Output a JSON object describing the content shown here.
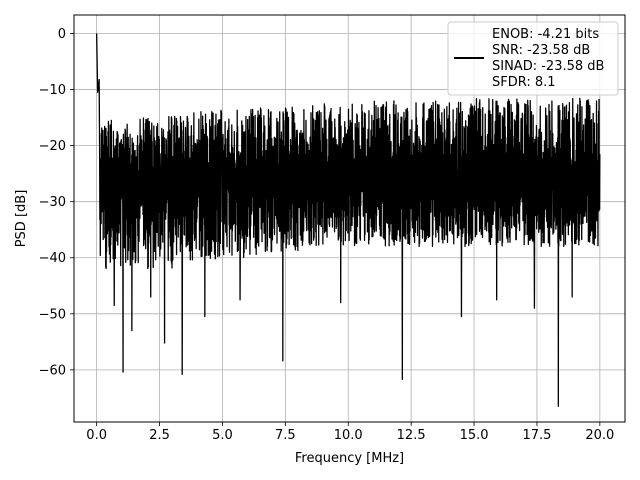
{
  "chart_data": {
    "type": "line",
    "title": "",
    "xlabel": "Frequency [MHz]",
    "ylabel": "PSD [dB]",
    "xlim": [
      -0.9,
      21.0
    ],
    "ylim": [
      -69.3,
      3.3
    ],
    "xticks": [
      0.0,
      2.5,
      5.0,
      7.5,
      10.0,
      12.5,
      15.0,
      17.5,
      20.0
    ],
    "xtick_labels": [
      "0.0",
      "2.5",
      "5.0",
      "7.5",
      "10.0",
      "12.5",
      "15.0",
      "17.5",
      "20.0"
    ],
    "yticks": [
      0,
      -10,
      -20,
      -30,
      -40,
      -50,
      -60
    ],
    "ytick_labels": [
      "0",
      "−10",
      "−20",
      "−30",
      "−40",
      "−50",
      "−60"
    ],
    "grid": true,
    "legend_position": "top-right",
    "legend": [
      "ENOB: -4.21 bits",
      "SNR: -23.58 dB",
      "SINAD: -23.58 dB",
      "SFDR: 8.1"
    ],
    "series": [
      {
        "color": "#000000",
        "envelope": {
          "x": [
            0,
            1,
            2,
            3,
            4,
            5,
            6,
            7,
            8,
            9,
            10,
            11,
            12,
            13,
            14,
            15,
            16,
            17,
            18,
            19,
            20
          ],
          "upper": [
            -16,
            -15,
            -15,
            -14.5,
            -14,
            -13.5,
            -13.5,
            -13,
            -13,
            -12.5,
            -12.5,
            -12,
            -12,
            -12,
            -12,
            -11.5,
            -11.5,
            -11.5,
            -11.5,
            -11.5,
            -11.5
          ],
          "lower": [
            -42,
            -42,
            -42,
            -42,
            -41,
            -40,
            -40,
            -39,
            -39,
            -38,
            -38,
            -38,
            -38,
            -38,
            -38,
            -38,
            -38,
            -38,
            -38,
            -38,
            -38
          ],
          "mean": -26.5
        },
        "peaks": [
          [
            0.0,
            0.0
          ],
          [
            0.04,
            -10.5
          ],
          [
            0.1,
            -8.2
          ]
        ],
        "dips": [
          [
            0.7,
            -48.5
          ],
          [
            1.05,
            -60.4
          ],
          [
            1.4,
            -53.0
          ],
          [
            2.15,
            -47.0
          ],
          [
            2.7,
            -55.2
          ],
          [
            3.4,
            -60.8
          ],
          [
            4.3,
            -50.5
          ],
          [
            5.7,
            -47.5
          ],
          [
            7.4,
            -58.4
          ],
          [
            9.7,
            -48.0
          ],
          [
            12.15,
            -61.7
          ],
          [
            14.5,
            -50.5
          ],
          [
            15.9,
            -47.5
          ],
          [
            17.4,
            -49.0
          ],
          [
            18.35,
            -66.5
          ],
          [
            18.9,
            -47.0
          ]
        ]
      }
    ]
  }
}
